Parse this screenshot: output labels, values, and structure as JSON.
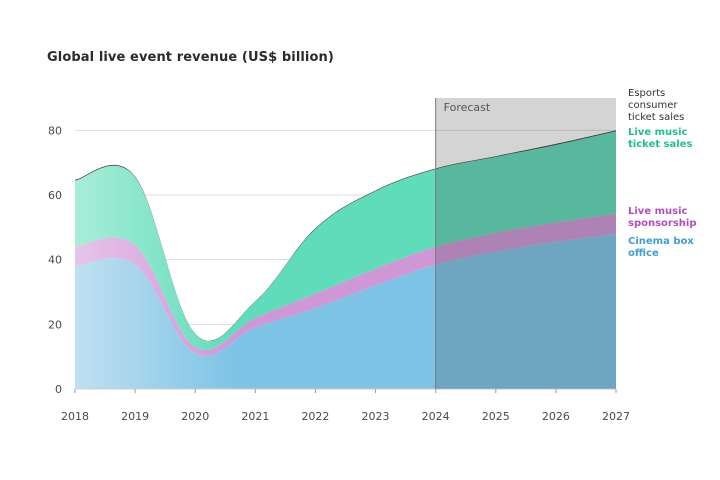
{
  "chart_data": {
    "type": "area",
    "title": "Global live event revenue (US$ billion)",
    "xlabel": "",
    "ylabel": "",
    "x": [
      2018,
      2019,
      2020,
      2021,
      2022,
      2023,
      2024,
      2025,
      2026,
      2027
    ],
    "x_tick_labels": [
      "2018",
      "2019",
      "2020",
      "2021",
      "2022",
      "2023",
      "2024",
      "2025",
      "2026",
      "2027"
    ],
    "y_ticks": [
      0,
      20,
      40,
      60,
      80
    ],
    "ylim": [
      0,
      90
    ],
    "stacked": true,
    "grid": true,
    "legend_placement": "right",
    "forecast": {
      "label": "Forecast",
      "from": 2024,
      "to": 2027
    },
    "series": [
      {
        "name": "Cinema box office",
        "color": "#3d9fd4",
        "values": [
          38,
          38.5,
          11,
          19,
          25,
          32,
          38.5,
          42.5,
          45.5,
          48
        ]
      },
      {
        "name": "Live music sponsorship",
        "color": "#b868c4",
        "values": [
          6,
          6,
          2,
          3,
          4.5,
          5.2,
          5.5,
          5.8,
          6,
          6.2
        ]
      },
      {
        "name": "Live music ticket sales",
        "color": "#2ecc9e",
        "values": [
          20.5,
          21,
          4,
          5,
          20,
          24,
          24,
          23.5,
          24,
          25.5
        ]
      },
      {
        "name": "Esports consumer ticket sales",
        "color": "#333333",
        "values": [
          0.2,
          0.2,
          0.1,
          0.1,
          0.2,
          0.2,
          0.2,
          0.2,
          0.3,
          0.3
        ]
      }
    ]
  },
  "legend": [
    {
      "lines": [
        "Esports",
        "consumer",
        "ticket sales"
      ],
      "color": "#333333"
    },
    {
      "lines": [
        "Live music",
        "ticket sales"
      ],
      "color": "#22c08e"
    },
    {
      "lines": [
        "Live music",
        "sponsorship"
      ],
      "color": "#b24fbf"
    },
    {
      "lines": [
        "Cinema box",
        "office"
      ],
      "color": "#3d9fd4"
    }
  ]
}
